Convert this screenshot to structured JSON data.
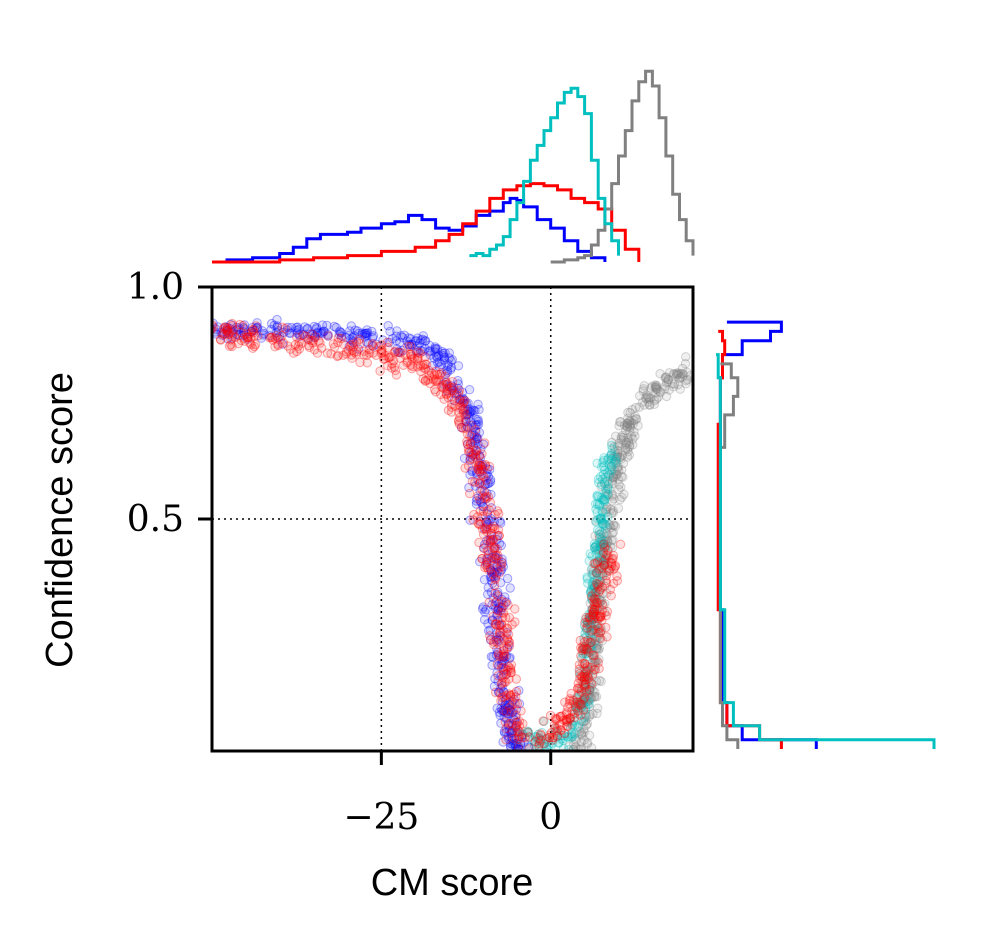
{
  "chart_data": {
    "type": "scatter",
    "xlabel": "CM score",
    "ylabel": "Confidence score",
    "xlim": [
      -50,
      21
    ],
    "ylim": [
      0,
      1.0
    ],
    "x_ticks": [
      -25,
      0
    ],
    "x_tick_labels": [
      "−25",
      "0"
    ],
    "y_ticks": [
      0.5,
      1.0
    ],
    "y_tick_labels": [
      "0.5",
      "1.0"
    ],
    "grid": "dotted",
    "marginals": {
      "top": "histogram of CM score",
      "right": "histogram of Confidence score"
    },
    "series": [
      {
        "name": "blue",
        "color": "#0000ff",
        "curve": [
          [
            -50,
            0.91
          ],
          [
            -40,
            0.91
          ],
          [
            -30,
            0.9
          ],
          [
            -20,
            0.88
          ],
          [
            -15,
            0.83
          ],
          [
            -12,
            0.73
          ],
          [
            -10,
            0.56
          ],
          [
            -9,
            0.45
          ],
          [
            -8,
            0.3
          ],
          [
            -7,
            0.14
          ],
          [
            -6,
            0.05
          ],
          [
            -5,
            0.01
          ],
          [
            -4,
            0.005
          ]
        ],
        "x_spread": 1.5,
        "y_spread": 0.02,
        "top_hist": [
          [
            -48,
            0.01
          ],
          [
            -44,
            0.02
          ],
          [
            -40,
            0.04
          ],
          [
            -38,
            0.07
          ],
          [
            -36,
            0.11
          ],
          [
            -34,
            0.13
          ],
          [
            -30,
            0.14
          ],
          [
            -28,
            0.16
          ],
          [
            -25,
            0.18
          ],
          [
            -23,
            0.19
          ],
          [
            -21,
            0.22
          ],
          [
            -19,
            0.2
          ],
          [
            -17,
            0.16
          ],
          [
            -15,
            0.15
          ],
          [
            -13,
            0.17
          ],
          [
            -11,
            0.22
          ],
          [
            -9,
            0.24
          ],
          [
            -7,
            0.28
          ],
          [
            -6,
            0.3
          ],
          [
            -5,
            0.29
          ],
          [
            -4,
            0.26
          ],
          [
            -2,
            0.2
          ],
          [
            0,
            0.16
          ],
          [
            2,
            0.1
          ],
          [
            4,
            0.05
          ],
          [
            6,
            0.02
          ],
          [
            8,
            0.0
          ]
        ]
      },
      {
        "name": "red",
        "color": "#ff0000",
        "curve": [
          [
            -50,
            0.9
          ],
          [
            -40,
            0.89
          ],
          [
            -30,
            0.87
          ],
          [
            -20,
            0.84
          ],
          [
            -15,
            0.78
          ],
          [
            -12,
            0.68
          ],
          [
            -10,
            0.55
          ],
          [
            -8,
            0.38
          ],
          [
            -7,
            0.22
          ],
          [
            -6,
            0.09
          ],
          [
            -5,
            0.03
          ],
          [
            -3,
            0.03
          ],
          [
            0,
            0.04
          ],
          [
            3,
            0.08
          ],
          [
            5,
            0.16
          ],
          [
            7,
            0.3
          ],
          [
            8,
            0.38
          ],
          [
            9,
            0.44
          ]
        ],
        "x_spread": 1.4,
        "y_spread": 0.025,
        "top_hist": [
          [
            -50,
            0.0
          ],
          [
            -45,
            0.0
          ],
          [
            -40,
            0.01
          ],
          [
            -35,
            0.02
          ],
          [
            -30,
            0.03
          ],
          [
            -25,
            0.05
          ],
          [
            -20,
            0.07
          ],
          [
            -17,
            0.1
          ],
          [
            -15,
            0.13
          ],
          [
            -13,
            0.18
          ],
          [
            -11,
            0.24
          ],
          [
            -9,
            0.3
          ],
          [
            -7,
            0.34
          ],
          [
            -5,
            0.36
          ],
          [
            -3,
            0.37
          ],
          [
            -1,
            0.36
          ],
          [
            1,
            0.34
          ],
          [
            3,
            0.3
          ],
          [
            5,
            0.28
          ],
          [
            7,
            0.25
          ],
          [
            9,
            0.15
          ],
          [
            11,
            0.06
          ],
          [
            13,
            0.0
          ]
        ]
      },
      {
        "name": "gray",
        "color": "#808080",
        "curve": [
          [
            4,
            0.01
          ],
          [
            5,
            0.05
          ],
          [
            6,
            0.15
          ],
          [
            7,
            0.33
          ],
          [
            8,
            0.45
          ],
          [
            9,
            0.55
          ],
          [
            10,
            0.64
          ],
          [
            12,
            0.72
          ],
          [
            15,
            0.77
          ],
          [
            18,
            0.8
          ],
          [
            21,
            0.82
          ]
        ],
        "x_spread": 1.2,
        "y_spread": 0.02,
        "top_hist": [
          [
            0,
            0.0
          ],
          [
            2,
            0.01
          ],
          [
            4,
            0.02
          ],
          [
            5,
            0.03
          ],
          [
            6,
            0.08
          ],
          [
            7,
            0.15
          ],
          [
            8,
            0.25
          ],
          [
            9,
            0.37
          ],
          [
            10,
            0.5
          ],
          [
            11,
            0.62
          ],
          [
            12,
            0.76
          ],
          [
            13,
            0.85
          ],
          [
            14,
            0.9
          ],
          [
            15,
            0.83
          ],
          [
            16,
            0.68
          ],
          [
            17,
            0.5
          ],
          [
            18,
            0.32
          ],
          [
            19,
            0.2
          ],
          [
            20,
            0.1
          ],
          [
            21,
            0.03
          ]
        ]
      },
      {
        "name": "cyan",
        "color": "#00bfbf",
        "curve": [
          [
            -5,
            0.02
          ],
          [
            -2,
            0.02
          ],
          [
            0,
            0.03
          ],
          [
            2,
            0.03
          ],
          [
            4,
            0.06
          ],
          [
            5,
            0.15
          ],
          [
            6,
            0.3
          ],
          [
            7,
            0.45
          ],
          [
            8,
            0.58
          ],
          [
            9,
            0.65
          ]
        ],
        "x_spread": 0.9,
        "y_spread": 0.03,
        "top_hist": [
          [
            -12,
            0.03
          ],
          [
            -11,
            0.04
          ],
          [
            -10,
            0.03
          ],
          [
            -9,
            0.06
          ],
          [
            -8,
            0.08
          ],
          [
            -7,
            0.12
          ],
          [
            -6,
            0.2
          ],
          [
            -5,
            0.28
          ],
          [
            -4,
            0.38
          ],
          [
            -3,
            0.48
          ],
          [
            -2,
            0.55
          ],
          [
            -1,
            0.62
          ],
          [
            0,
            0.68
          ],
          [
            1,
            0.75
          ],
          [
            2,
            0.8
          ],
          [
            3,
            0.82
          ],
          [
            4,
            0.78
          ],
          [
            5,
            0.7
          ],
          [
            6,
            0.48
          ],
          [
            7,
            0.3
          ],
          [
            8,
            0.18
          ],
          [
            9,
            0.1
          ],
          [
            10,
            0.03
          ]
        ]
      }
    ],
    "right_hist": [
      {
        "name": "blue",
        "color": "#0000ff",
        "counts": [
          [
            0.0,
            0.46
          ],
          [
            0.02,
            0.12
          ],
          [
            0.05,
            0.05
          ],
          [
            0.1,
            0.03
          ],
          [
            0.3,
            0.02
          ],
          [
            0.5,
            0.02
          ],
          [
            0.7,
            0.02
          ],
          [
            0.8,
            0.03
          ],
          [
            0.85,
            0.12
          ],
          [
            0.88,
            0.25
          ],
          [
            0.9,
            0.3
          ],
          [
            0.92,
            0.05
          ]
        ]
      },
      {
        "name": "red",
        "color": "#ff0000",
        "counts": [
          [
            0.0,
            0.3
          ],
          [
            0.02,
            0.2
          ],
          [
            0.05,
            0.05
          ],
          [
            0.1,
            0.02
          ],
          [
            0.3,
            0.01
          ],
          [
            0.5,
            0.01
          ],
          [
            0.7,
            0.02
          ],
          [
            0.8,
            0.03
          ],
          [
            0.85,
            0.04
          ],
          [
            0.88,
            0.03
          ],
          [
            0.9,
            0.01
          ]
        ]
      },
      {
        "name": "gray",
        "color": "#808080",
        "counts": [
          [
            0.0,
            0.1
          ],
          [
            0.02,
            0.05
          ],
          [
            0.05,
            0.03
          ],
          [
            0.1,
            0.02
          ],
          [
            0.3,
            0.02
          ],
          [
            0.5,
            0.02
          ],
          [
            0.65,
            0.04
          ],
          [
            0.72,
            0.08
          ],
          [
            0.76,
            0.1
          ],
          [
            0.8,
            0.07
          ],
          [
            0.83,
            0.02
          ]
        ]
      },
      {
        "name": "cyan",
        "color": "#00bfbf",
        "counts": [
          [
            0.0,
            1.0
          ],
          [
            0.02,
            0.2
          ],
          [
            0.05,
            0.08
          ],
          [
            0.1,
            0.04
          ],
          [
            0.3,
            0.02
          ],
          [
            0.5,
            0.02
          ],
          [
            0.6,
            0.02
          ],
          [
            0.7,
            0.02
          ],
          [
            0.8,
            0.01
          ],
          [
            0.85,
            0.0
          ]
        ]
      }
    ]
  }
}
